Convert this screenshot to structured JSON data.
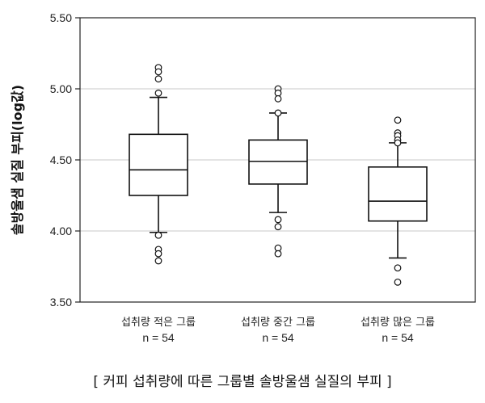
{
  "chart_data": {
    "type": "boxplot",
    "ylabel": "솔방울샘 실질 부피(log값)",
    "ylim": [
      3.5,
      5.5
    ],
    "yticks": [
      "3.50",
      "4.00",
      "4.50",
      "5.00",
      "5.50"
    ],
    "grid": true,
    "categories": [
      "섭취량 적은 그룹",
      "섭취량 중간 그룹",
      "섭취량 많은 그룹"
    ],
    "n_labels": [
      "n = 54",
      "n = 54",
      "n = 54"
    ],
    "boxes": [
      {
        "whisker_low": 3.99,
        "q1": 4.25,
        "median": 4.43,
        "q3": 4.68,
        "whisker_high": 4.94,
        "outliers": [
          5.15,
          5.12,
          5.07,
          4.97,
          3.97,
          3.87,
          3.84,
          3.79
        ]
      },
      {
        "whisker_low": 4.13,
        "q1": 4.33,
        "median": 4.49,
        "q3": 4.64,
        "whisker_high": 4.83,
        "outliers": [
          5.0,
          4.97,
          4.93,
          4.83,
          4.08,
          4.03,
          3.88,
          3.84
        ]
      },
      {
        "whisker_low": 3.81,
        "q1": 4.07,
        "median": 4.21,
        "q3": 4.45,
        "whisker_high": 4.62,
        "outliers": [
          4.78,
          4.69,
          4.67,
          4.64,
          4.62,
          3.74,
          3.64
        ]
      }
    ]
  },
  "caption": "[ 커피 섭취량에 따른 그룹별 솔방울샘 실질의 부피 ]"
}
